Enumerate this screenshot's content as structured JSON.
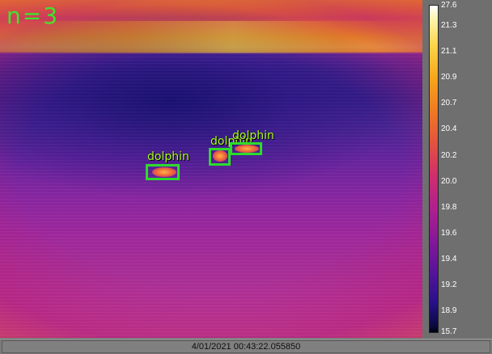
{
  "overlay": {
    "count_label": "n=3"
  },
  "detections": [
    {
      "label": "dolphin"
    },
    {
      "label": "dolphin"
    },
    {
      "label": "dolphin"
    }
  ],
  "colorbar": {
    "ticks": [
      "27.6",
      "21.3",
      "21.1",
      "20.9",
      "20.7",
      "20.4",
      "20.2",
      "20.0",
      "19.8",
      "19.6",
      "19.4",
      "19.2",
      "18.9",
      "15.7"
    ]
  },
  "status": {
    "timestamp": "4/01/2021 00:43:22.055850"
  },
  "colors": {
    "box": "#2bdc2b",
    "label": "#aaff22",
    "count": "#39e82c"
  }
}
